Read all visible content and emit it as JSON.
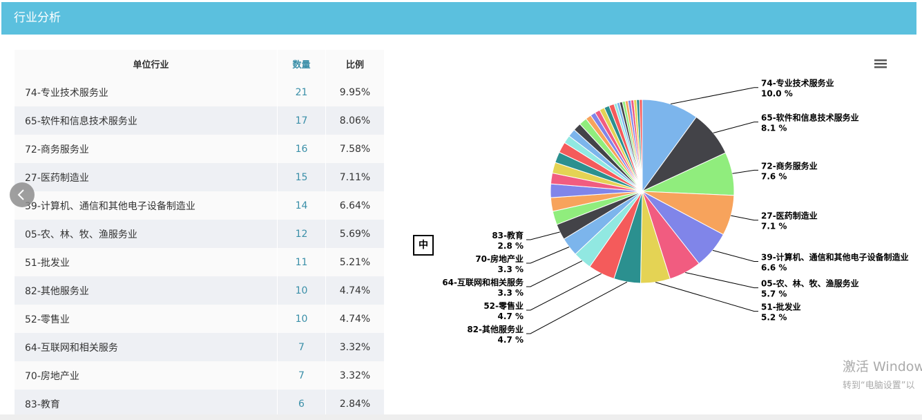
{
  "header": {
    "title": "行业分析"
  },
  "table": {
    "columns": [
      "单位行业",
      "数量",
      "比例"
    ],
    "rows": [
      [
        "74-专业技术服务业",
        21,
        "9.95%"
      ],
      [
        "65-软件和信息技术服务业",
        17,
        "8.06%"
      ],
      [
        "72-商务服务业",
        16,
        "7.58%"
      ],
      [
        "27-医药制造业",
        15,
        "7.11%"
      ],
      [
        "39-计算机、通信和其他电子设备制造业",
        14,
        "6.64%"
      ],
      [
        "05-农、林、牧、渔服务业",
        12,
        "5.69%"
      ],
      [
        "51-批发业",
        11,
        "5.21%"
      ],
      [
        "82-其他服务业",
        10,
        "4.74%"
      ],
      [
        "52-零售业",
        10,
        "4.74%"
      ],
      [
        "64-互联网和相关服务",
        7,
        "3.32%"
      ],
      [
        "70-房地产业",
        7,
        "3.32%"
      ],
      [
        "83-教育",
        6,
        "2.84%"
      ]
    ]
  },
  "controls": {
    "language_button": "中"
  },
  "watermark": {
    "line1": "激活 Window",
    "line2": "转到“电脑设置”以"
  },
  "chart_data": {
    "type": "pie",
    "categories": [
      "74-专业技术服务业",
      "65-软件和信息技术服务业",
      "72-商务服务业",
      "27-医药制造业",
      "39-计算机、通信和其他电子设备制造业",
      "05-农、林、牧、渔服务业",
      "51-批发业",
      "82-其他服务业",
      "52-零售业",
      "64-互联网和相关服务",
      "70-房地产业",
      "83-教育",
      null,
      null,
      null,
      null,
      null,
      null,
      null,
      null,
      null,
      null,
      null,
      null,
      null,
      null,
      null,
      null,
      null,
      null,
      null,
      null,
      null,
      null,
      null,
      null,
      null,
      null,
      null
    ],
    "values": [
      10.0,
      8.1,
      7.6,
      7.1,
      6.6,
      5.7,
      5.2,
      4.7,
      4.7,
      3.3,
      3.3,
      2.8,
      2.4,
      2.4,
      2.4,
      1.9,
      1.9,
      1.9,
      1.9,
      1.4,
      1.4,
      1.4,
      1.4,
      1.0,
      0.9,
      0.9,
      0.9,
      0.9,
      0.9,
      0.5,
      0.5,
      0.5,
      0.5,
      0.5,
      0.5,
      0.5,
      0.5,
      0.5,
      0.5
    ],
    "value_labels": [
      "10.0 %",
      "8.1 %",
      "7.6 %",
      "7.1 %",
      "6.6 %",
      "5.7 %",
      "5.2 %",
      "4.7 %",
      "4.7 %",
      "3.3 %",
      "3.3 %",
      "2.8 %",
      null,
      null,
      null,
      null,
      null,
      null,
      null,
      null,
      null,
      null,
      null,
      null,
      null,
      null,
      null,
      null,
      null,
      null,
      null,
      null,
      null,
      null,
      null,
      null,
      null,
      null,
      null
    ],
    "colors": [
      "#7cb5ec",
      "#434348",
      "#90ed7d",
      "#f7a35c",
      "#8085e9",
      "#f15c80",
      "#e4d354",
      "#2b908f",
      "#f45b5b",
      "#91e8e1"
    ]
  }
}
